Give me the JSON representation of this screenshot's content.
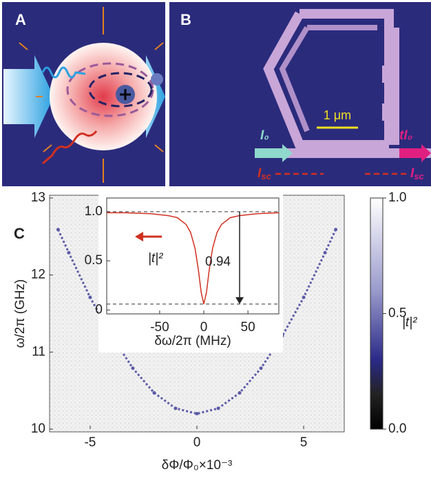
{
  "panels": {
    "a": {
      "label": "A"
    },
    "b": {
      "label": "B",
      "scale_bar": "1 μm",
      "input": "I₀",
      "output": "tI₀",
      "scattered_left": {
        "symbol": "I",
        "sub": "sc"
      },
      "scattered_right": {
        "symbol": "I",
        "sub": "sc"
      }
    },
    "c": {
      "label": "C"
    }
  },
  "chart_data": [
    {
      "type": "heatmap",
      "xlabel": "δΦ/Φ₀×10⁻³",
      "ylabel": "ω/2π (GHz)",
      "xlim": [
        -6.9,
        6.9
      ],
      "ylim": [
        10,
        13
      ],
      "xticks": [
        -5,
        0,
        5
      ],
      "yticks": [
        10,
        11,
        12,
        13
      ],
      "x": [
        -6.5,
        -6,
        -5,
        -4,
        -3,
        -2,
        -1,
        0,
        1,
        2,
        3,
        4,
        5,
        6,
        6.5
      ],
      "values": [
        12.59,
        12.29,
        11.71,
        11.21,
        10.79,
        10.47,
        10.27,
        10.2,
        10.27,
        10.47,
        10.79,
        11.21,
        11.71,
        12.29,
        12.59
      ],
      "color": "#5a5aa8",
      "colorbar": {
        "label": "|t|²",
        "lim": [
          0,
          1
        ],
        "ticks": [
          {
            "value": 0,
            "label": "0.0"
          },
          {
            "value": 0.5,
            "label": "0.5"
          },
          {
            "value": 1,
            "label": "1.0"
          }
        ]
      }
    },
    {
      "type": "line",
      "xlabel": "δω/2π (MHz)",
      "legend": "|t|²",
      "annotation": "0.94",
      "xlim": [
        -110,
        85
      ],
      "ylim": [
        -0.04,
        1.14
      ],
      "xticks": [
        -50,
        0,
        50
      ],
      "yticks": [
        0,
        0.5,
        {
          "value": 1,
          "label": "1.0"
        }
      ],
      "x": [
        -110,
        -90,
        -60,
        -40,
        -30,
        -20,
        -15,
        -10,
        -6,
        -3,
        0,
        3,
        6,
        10,
        15,
        20,
        30,
        40,
        60,
        85
      ],
      "values": [
        0.99,
        0.99,
        0.98,
        0.96,
        0.94,
        0.87,
        0.79,
        0.63,
        0.4,
        0.18,
        0.06,
        0.18,
        0.4,
        0.63,
        0.79,
        0.87,
        0.94,
        0.96,
        0.98,
        0.99
      ],
      "color": "#d03020",
      "reference_lines": [
        1,
        0.06
      ]
    }
  ]
}
